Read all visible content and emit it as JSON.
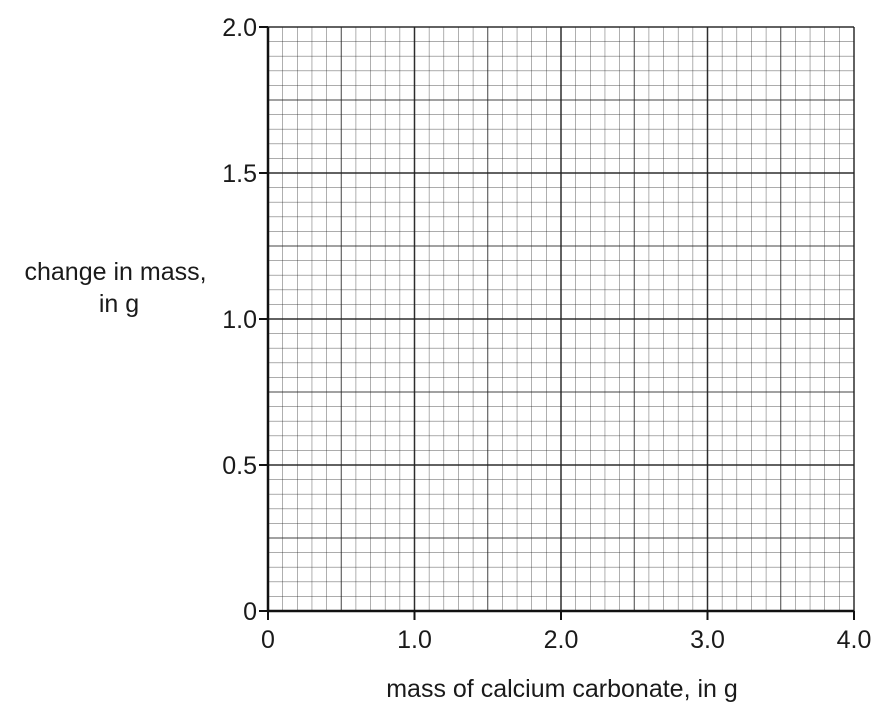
{
  "chart_data": {
    "type": "line",
    "title": "",
    "xlabel": "mass of calcium carbonate, in g",
    "ylabel": [
      "change in mass,",
      "in g"
    ],
    "xlim": [
      0,
      4.0
    ],
    "ylim": [
      0,
      2.0
    ],
    "x_ticks": [
      "0",
      "1.0",
      "2.0",
      "3.0",
      "4.0"
    ],
    "y_ticks": [
      "0",
      "0.5",
      "1.0",
      "1.5",
      "2.0"
    ],
    "grid": true,
    "series": []
  }
}
